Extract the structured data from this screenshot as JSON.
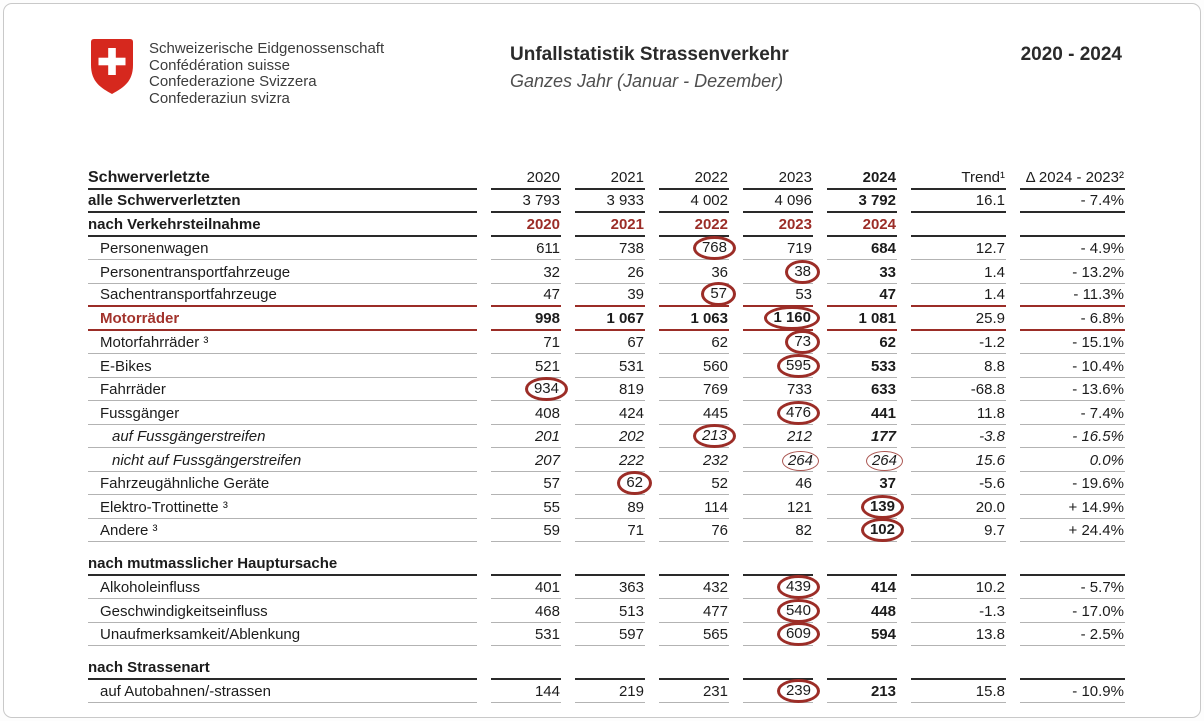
{
  "page": {
    "background": "#ffffff",
    "frame_color": "#c9c9c9",
    "accent_red": "#9b2d27",
    "swiss_red": "#d6281e"
  },
  "header": {
    "federal_lines": [
      "Schweizerische Eidgenossenschaft",
      "Confédération suisse",
      "Confederazione Svizzera",
      "Confederaziun svizra"
    ],
    "title": "Unfallstatistik Strassenverkehr",
    "subtitle": "Ganzes Jahr (Januar - Dezember)",
    "year_range": "2020 - 2024"
  },
  "table": {
    "columns": [
      "2020",
      "2021",
      "2022",
      "2023",
      "2024",
      "Trend¹",
      "Δ 2024 - 2023²"
    ],
    "rows": [
      {
        "type": "header",
        "label": "Schwerverletzte",
        "cells": [
          "2020",
          "2021",
          "2022",
          "2023",
          "2024",
          "Trend¹",
          "Δ 2024 - 2023²"
        ]
      },
      {
        "type": "total",
        "label": "alle Schwerverletzten",
        "cells": [
          "3 793",
          "3 933",
          "4 002",
          "4 096",
          "3 792",
          "16.1",
          "- 7.4%"
        ]
      },
      {
        "type": "section-years",
        "label": "nach Verkehrsteilnahme",
        "cells": [
          "2020",
          "2021",
          "2022",
          "2023",
          "2024",
          "",
          ""
        ]
      },
      {
        "type": "data",
        "label": "Personenwagen",
        "cells": [
          "611",
          "738",
          "768",
          "719",
          "684",
          "12.7",
          "- 4.9%"
        ],
        "circled": [
          2
        ]
      },
      {
        "type": "data",
        "label": "Personentransportfahrzeuge",
        "cells": [
          "32",
          "26",
          "36",
          "38",
          "33",
          "1.4",
          "- 13.2%"
        ],
        "circled": [
          3
        ]
      },
      {
        "type": "data",
        "label": "Sachentransportfahrzeuge",
        "cells": [
          "47",
          "39",
          "57",
          "53",
          "47",
          "1.4",
          "- 11.3%"
        ],
        "circled": [
          2
        ],
        "rule": "red"
      },
      {
        "type": "highlight",
        "label": "Motorräder",
        "cells": [
          "998",
          "1 067",
          "1 063",
          "1 160",
          "1 081",
          "25.9",
          "- 6.8%"
        ],
        "circled": [
          3
        ]
      },
      {
        "type": "data",
        "label": "Motorfahrräder ³",
        "cells": [
          "71",
          "67",
          "62",
          "73",
          "62",
          "-1.2",
          "- 15.1%"
        ],
        "circled": [
          3
        ]
      },
      {
        "type": "data",
        "label": "E-Bikes",
        "cells": [
          "521",
          "531",
          "560",
          "595",
          "533",
          "8.8",
          "- 10.4%"
        ],
        "circled": [
          3
        ]
      },
      {
        "type": "data",
        "label": "Fahrräder",
        "cells": [
          "934",
          "819",
          "769",
          "733",
          "633",
          "-68.8",
          "- 13.6%"
        ],
        "circled": [
          0
        ]
      },
      {
        "type": "data",
        "label": "Fussgänger",
        "cells": [
          "408",
          "424",
          "445",
          "476",
          "441",
          "11.8",
          "- 7.4%"
        ],
        "circled": [
          3
        ]
      },
      {
        "type": "data-italic",
        "label": "auf Fussgängerstreifen",
        "cells": [
          "201",
          "202",
          "213",
          "212",
          "177",
          "-3.8",
          "- 16.5%"
        ],
        "circled": [
          2
        ]
      },
      {
        "type": "data-italic",
        "label": "nicht auf Fussgängerstreifen",
        "cells": [
          "207",
          "222",
          "232",
          "264",
          "264",
          "15.6",
          "0.0%"
        ],
        "circled": [
          3,
          4
        ],
        "circle_style": "thin",
        "bold24": false
      },
      {
        "type": "data",
        "label": "Fahrzeugähnliche Geräte",
        "cells": [
          "57",
          "62",
          "52",
          "46",
          "37",
          "-5.6",
          "- 19.6%"
        ],
        "circled": [
          1
        ]
      },
      {
        "type": "data",
        "label": "Elektro-Trottinette ³",
        "cells": [
          "55",
          "89",
          "114",
          "121",
          "139",
          "20.0",
          "+ 14.9%"
        ],
        "circled": [
          4
        ]
      },
      {
        "type": "data",
        "label": "Andere ³",
        "cells": [
          "59",
          "71",
          "76",
          "82",
          "102",
          "9.7",
          "+ 24.4%"
        ],
        "circled": [
          4
        ]
      },
      {
        "type": "spacer"
      },
      {
        "type": "section",
        "label": "nach mutmasslicher Hauptursache",
        "cells": [
          "",
          "",
          "",
          "",
          "",
          "",
          ""
        ]
      },
      {
        "type": "data",
        "label": "Alkoholeinfluss",
        "cells": [
          "401",
          "363",
          "432",
          "439",
          "414",
          "10.2",
          "- 5.7%"
        ],
        "circled": [
          3
        ]
      },
      {
        "type": "data",
        "label": "Geschwindigkeitseinfluss",
        "cells": [
          "468",
          "513",
          "477",
          "540",
          "448",
          "-1.3",
          "- 17.0%"
        ],
        "circled": [
          3
        ]
      },
      {
        "type": "data",
        "label": "Unaufmerksamkeit/Ablenkung",
        "cells": [
          "531",
          "597",
          "565",
          "609",
          "594",
          "13.8",
          "- 2.5%"
        ],
        "circled": [
          3
        ]
      },
      {
        "type": "spacer"
      },
      {
        "type": "section",
        "label": "nach Strassenart",
        "cells": [
          "",
          "",
          "",
          "",
          "",
          "",
          ""
        ]
      },
      {
        "type": "data",
        "label": "auf Autobahnen/-strassen",
        "cells": [
          "144",
          "219",
          "231",
          "239",
          "213",
          "15.8",
          "- 10.9%"
        ],
        "circled": [
          3
        ]
      }
    ]
  }
}
